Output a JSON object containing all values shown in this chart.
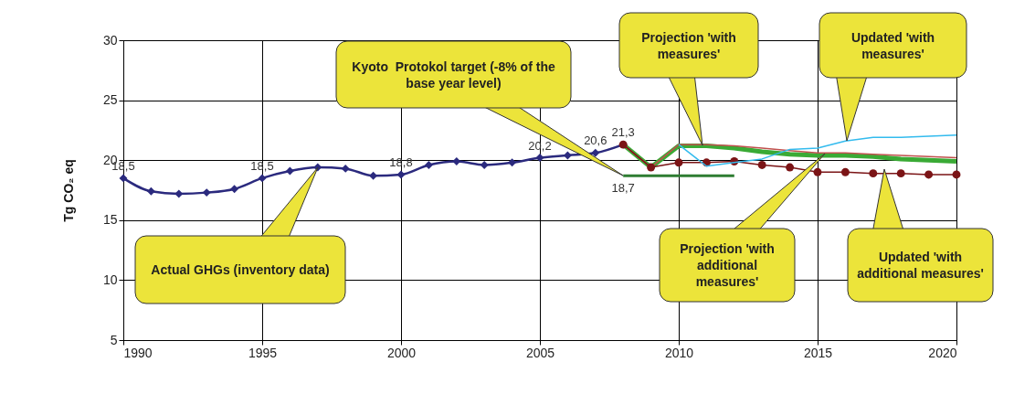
{
  "chart_data": {
    "type": "line",
    "ylabel": "Tg CO₂ eq",
    "xlim": [
      1990,
      2020
    ],
    "xticks": [
      1990,
      1995,
      2000,
      2005,
      2010,
      2015,
      2020
    ],
    "ylim": [
      5,
      30
    ],
    "yticks": [
      5,
      10,
      15,
      20,
      25,
      30
    ],
    "grid": true,
    "series": [
      {
        "color": "#2b2a7e",
        "marker": "diamond",
        "x": [
          1990,
          1991,
          1992,
          1993,
          1994,
          1995,
          1996,
          1997,
          1998,
          1999,
          2000,
          2001,
          2002,
          2003,
          2004,
          2005,
          2006,
          2007,
          2008
        ],
        "values": [
          18.5,
          17.4,
          17.2,
          17.3,
          17.6,
          18.5,
          19.1,
          19.4,
          19.3,
          18.7,
          18.8,
          19.6,
          19.9,
          19.6,
          19.8,
          20.2,
          20.4,
          20.6,
          21.3
        ],
        "value_labels": [
          "18,5",
          null,
          null,
          null,
          null,
          "18,5",
          null,
          null,
          null,
          null,
          "18,8",
          null,
          null,
          null,
          null,
          "20,2",
          null,
          "20,6",
          "21,3"
        ]
      },
      {
        "color": "#2e7d32",
        "marker": "none",
        "x": [
          2008,
          2009,
          2010,
          2011,
          2012
        ],
        "values": [
          18.7,
          18.7,
          18.7,
          18.7,
          18.7
        ],
        "value_labels": [
          "18,7",
          null,
          null,
          null,
          null
        ]
      },
      {
        "color": "#3aaa35",
        "marker": "none",
        "x": [
          2008,
          2009,
          2010,
          2011,
          2012,
          2013,
          2014,
          2015,
          2016,
          2017,
          2018,
          2019,
          2020
        ],
        "values": [
          21.3,
          19.4,
          21.2,
          21.2,
          21.0,
          20.7,
          20.5,
          20.4,
          20.4,
          20.3,
          20.1,
          20.0,
          19.9
        ]
      },
      {
        "color": "#c0504d",
        "marker": "none",
        "x": [
          2008,
          2009,
          2010,
          2011,
          2012,
          2013,
          2014,
          2015,
          2016,
          2017,
          2018,
          2019,
          2020
        ],
        "values": [
          21.3,
          19.4,
          21.3,
          21.3,
          21.2,
          21.0,
          20.8,
          20.6,
          20.6,
          20.5,
          20.4,
          20.3,
          20.2
        ]
      },
      {
        "color": "#7b1416",
        "marker": "circle",
        "x": [
          2008,
          2009,
          2010,
          2011,
          2012,
          2013,
          2014,
          2015,
          2016,
          2017,
          2018,
          2019,
          2020
        ],
        "values": [
          21.3,
          19.4,
          19.8,
          19.8,
          19.9,
          19.6,
          19.4,
          19.0,
          19.0,
          18.9,
          18.9,
          18.8,
          18.8
        ]
      },
      {
        "color": "#33bbee",
        "marker": "none",
        "x": [
          2010,
          2011,
          2012,
          2013,
          2014,
          2015,
          2016,
          2017,
          2018,
          2019,
          2020
        ],
        "values": [
          21.3,
          19.5,
          19.8,
          20.1,
          20.9,
          21.0,
          21.6,
          21.9,
          21.9,
          22.0,
          22.1
        ]
      }
    ],
    "annotations": [
      "Kyoto  Protokol target (-8% of the base year level)",
      "Projection 'with measures'",
      "Updated 'with measures'",
      "Actual GHGs (inventory data)",
      "Projection 'with additional measures'",
      "Updated 'with additional measures'"
    ]
  }
}
